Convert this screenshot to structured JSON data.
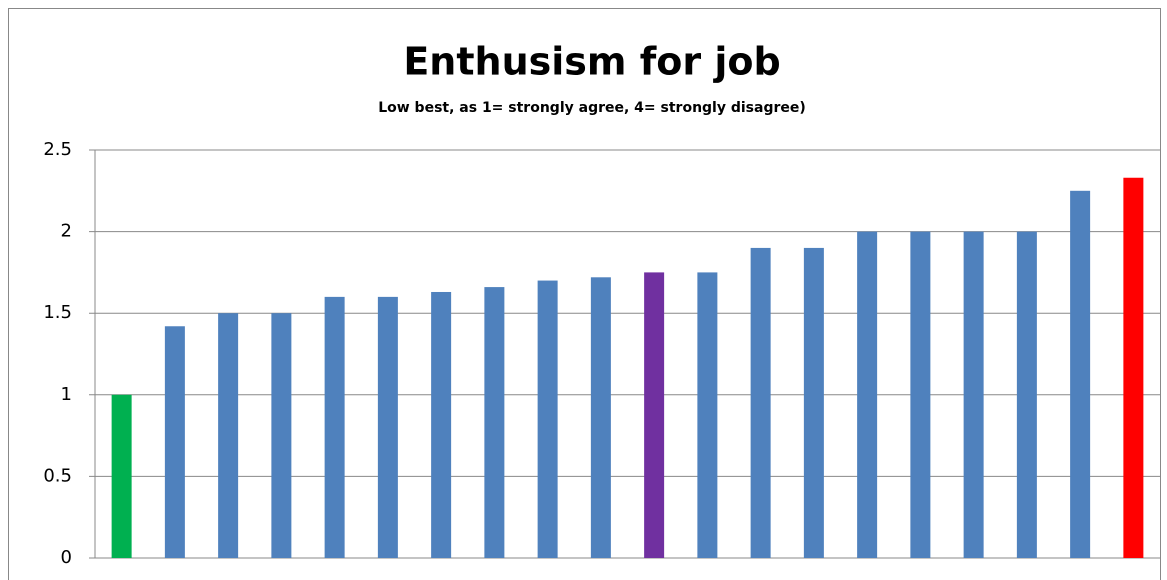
{
  "chart_data": {
    "type": "bar",
    "title": "Enthusism for job",
    "subtitle": "Low best, as 1= strongly agree, 4= strongly disagree)",
    "categories": [
      null,
      null,
      null,
      null,
      null,
      null,
      null,
      null,
      null,
      null,
      null,
      null,
      null,
      null,
      null,
      null,
      null,
      null,
      null,
      null
    ],
    "values": [
      1,
      1.42,
      1.5,
      1.5,
      1.6,
      1.6,
      1.63,
      1.66,
      1.7,
      1.72,
      1.75,
      1.75,
      1.9,
      1.9,
      2,
      2,
      2,
      2,
      2.25,
      2.33
    ],
    "colors": [
      "#00b050",
      "#4f81bd",
      "#4f81bd",
      "#4f81bd",
      "#4f81bd",
      "#4f81bd",
      "#4f81bd",
      "#4f81bd",
      "#4f81bd",
      "#4f81bd",
      "#7030a0",
      "#4f81bd",
      "#4f81bd",
      "#4f81bd",
      "#4f81bd",
      "#4f81bd",
      "#4f81bd",
      "#4f81bd",
      "#4f81bd",
      "#ff0000"
    ],
    "ylim": [
      0,
      2.5
    ],
    "yticks": [
      0,
      0.5,
      1,
      1.5,
      2,
      2.5
    ],
    "grid": true
  }
}
